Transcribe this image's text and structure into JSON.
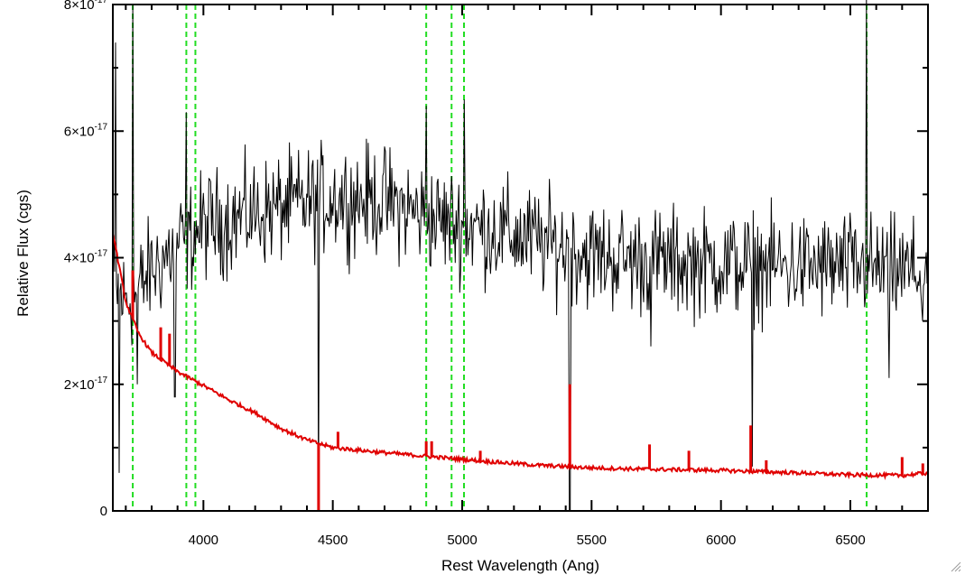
{
  "chart_data": {
    "type": "line",
    "xlabel": "Rest Wavelength (Ang)",
    "ylabel": "Relative Flux (cgs)",
    "xlim": [
      3650,
      6800
    ],
    "ylim": [
      0,
      8e-17
    ],
    "x_ticks": [
      {
        "value": 4000,
        "label": "4000"
      },
      {
        "value": 4500,
        "label": "4500"
      },
      {
        "value": 5000,
        "label": "5000"
      },
      {
        "value": 5500,
        "label": "5500"
      },
      {
        "value": 6000,
        "label": "6000"
      },
      {
        "value": 6500,
        "label": "6500"
      }
    ],
    "y_ticks": [
      {
        "value": 0,
        "label": "0",
        "exp": ""
      },
      {
        "value": 2e-17,
        "label": "2×10",
        "exp": "-17"
      },
      {
        "value": 4e-17,
        "label": "4×10",
        "exp": "-17"
      },
      {
        "value": 6e-17,
        "label": "6×10",
        "exp": "-17"
      },
      {
        "value": 8e-17,
        "label": "8×10",
        "exp": "-17"
      }
    ],
    "marker_lines": [
      3727,
      3934,
      3969,
      4861,
      4959,
      5007,
      6563
    ],
    "series": [
      {
        "color": "#000000",
        "continuum": [
          [
            3650,
            3.6e-17
          ],
          [
            3700,
            3.3e-17
          ],
          [
            3750,
            3.5e-17
          ],
          [
            3800,
            3.8e-17
          ],
          [
            3900,
            4.2e-17
          ],
          [
            4000,
            4.5e-17
          ],
          [
            4200,
            4.7e-17
          ],
          [
            4500,
            4.95e-17
          ],
          [
            4700,
            4.9e-17
          ],
          [
            4900,
            4.6e-17
          ],
          [
            5100,
            4.45e-17
          ],
          [
            5300,
            4.25e-17
          ],
          [
            5500,
            4.05e-17
          ],
          [
            5700,
            3.95e-17
          ],
          [
            6000,
            3.9e-17
          ],
          [
            6300,
            3.85e-17
          ],
          [
            6500,
            3.85e-17
          ],
          [
            6800,
            3.75e-17
          ]
        ],
        "noise_sigma": 6e-18,
        "features": [
          {
            "x": 3660,
            "y": 7.4e-17
          },
          {
            "x": 3675,
            "y": 6e-18
          },
          {
            "x": 3727,
            "y": 8e-17
          },
          {
            "x": 3745,
            "y": 2e-17
          },
          {
            "x": 3890,
            "y": 1.8e-17
          },
          {
            "x": 3933,
            "y": 6.3e-17
          },
          {
            "x": 4445,
            "y": 0.0
          },
          {
            "x": 4861,
            "y": 6.4e-17
          },
          {
            "x": 5007,
            "y": 6.5e-17
          },
          {
            "x": 5416,
            "y": 0.0
          },
          {
            "x": 5730,
            "y": 2.6e-17
          },
          {
            "x": 6120,
            "y": 7e-18
          },
          {
            "x": 6563,
            "y": 8.2e-17
          },
          {
            "x": 6650,
            "y": 2.1e-17
          },
          {
            "x": 6780,
            "y": 3e-17
          }
        ]
      },
      {
        "color": "#e00000",
        "continuum": [
          [
            3650,
            4.4e-17
          ],
          [
            3700,
            3.3e-17
          ],
          [
            3750,
            2.8e-17
          ],
          [
            3800,
            2.5e-17
          ],
          [
            3900,
            2.2e-17
          ],
          [
            4000,
            1.98e-17
          ],
          [
            4100,
            1.75e-17
          ],
          [
            4200,
            1.55e-17
          ],
          [
            4300,
            1.3e-17
          ],
          [
            4400,
            1.12e-17
          ],
          [
            4500,
            1e-17
          ],
          [
            4700,
            9.2e-18
          ],
          [
            4900,
            8.5e-18
          ],
          [
            5100,
            7.8e-18
          ],
          [
            5300,
            7.2e-18
          ],
          [
            5500,
            6.8e-18
          ],
          [
            5700,
            6.6e-18
          ],
          [
            6000,
            6.4e-18
          ],
          [
            6300,
            6e-18
          ],
          [
            6500,
            5.7e-18
          ],
          [
            6700,
            5.6e-18
          ],
          [
            6800,
            6e-18
          ]
        ],
        "lines": [
          {
            "x": 3727,
            "y": 3.8e-17
          },
          {
            "x": 3835,
            "y": 2.9e-17
          },
          {
            "x": 3869,
            "y": 2.8e-17
          },
          {
            "x": 4445,
            "y": 0.0
          },
          {
            "x": 4520,
            "y": 1.25e-17
          },
          {
            "x": 4861,
            "y": 1.1e-17
          },
          {
            "x": 4882,
            "y": 1.1e-17
          },
          {
            "x": 5070,
            "y": 9.5e-18
          },
          {
            "x": 5416,
            "y": 2e-17
          },
          {
            "x": 5724,
            "y": 1.05e-17
          },
          {
            "x": 5876,
            "y": 9.5e-18
          },
          {
            "x": 6115,
            "y": 1.35e-17
          },
          {
            "x": 6175,
            "y": 8e-18
          },
          {
            "x": 6700,
            "y": 8.5e-18
          },
          {
            "x": 6780,
            "y": 7.5e-18
          }
        ]
      }
    ]
  }
}
